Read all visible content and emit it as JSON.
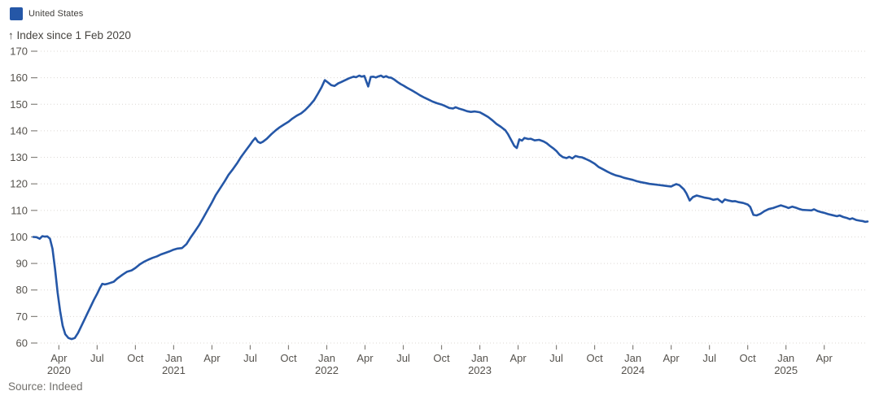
{
  "legend": {
    "label": "United States",
    "color": "#2557a7"
  },
  "source": {
    "text": "Source: Indeed"
  },
  "chart_data": {
    "type": "line",
    "title": "",
    "xlabel": "",
    "ylabel": "Index since 1 Feb 2020",
    "y_axis_label": "↑ Index since 1 Feb 2020",
    "ylim": [
      60,
      170
    ],
    "y_ticks": [
      60,
      70,
      80,
      90,
      100,
      110,
      120,
      130,
      140,
      150,
      160,
      170
    ],
    "grid": "dotted horizontal gridlines",
    "legend_position": "top-left",
    "x_unit": "months since 1 Feb 2020",
    "x_range_months": [
      0,
      65.4
    ],
    "x_ticks": [
      {
        "m": 2,
        "label": "Apr",
        "year": "2020"
      },
      {
        "m": 5,
        "label": "Jul"
      },
      {
        "m": 8,
        "label": "Oct"
      },
      {
        "m": 11,
        "label": "Jan",
        "year": "2021"
      },
      {
        "m": 14,
        "label": "Apr"
      },
      {
        "m": 17,
        "label": "Jul"
      },
      {
        "m": 20,
        "label": "Oct"
      },
      {
        "m": 23,
        "label": "Jan",
        "year": "2022"
      },
      {
        "m": 26,
        "label": "Apr"
      },
      {
        "m": 29,
        "label": "Jul"
      },
      {
        "m": 32,
        "label": "Oct"
      },
      {
        "m": 35,
        "label": "Jan",
        "year": "2023"
      },
      {
        "m": 38,
        "label": "Apr"
      },
      {
        "m": 41,
        "label": "Jul"
      },
      {
        "m": 44,
        "label": "Oct"
      },
      {
        "m": 47,
        "label": "Jan",
        "year": "2024"
      },
      {
        "m": 50,
        "label": "Apr"
      },
      {
        "m": 53,
        "label": "Jul"
      },
      {
        "m": 56,
        "label": "Oct"
      },
      {
        "m": 59,
        "label": "Jan",
        "year": "2025"
      },
      {
        "m": 62,
        "label": "Apr"
      }
    ],
    "series": [
      {
        "name": "United States",
        "color": "#2557a7",
        "points": [
          [
            0,
            100
          ],
          [
            0.25,
            99.9
          ],
          [
            0.5,
            99.3
          ],
          [
            0.7,
            100.3
          ],
          [
            0.9,
            100.1
          ],
          [
            1.1,
            100.2
          ],
          [
            1.3,
            99.3
          ],
          [
            1.5,
            95.5
          ],
          [
            1.7,
            88
          ],
          [
            1.9,
            79
          ],
          [
            2.1,
            72
          ],
          [
            2.3,
            66.5
          ],
          [
            2.5,
            63.3
          ],
          [
            2.75,
            61.9
          ],
          [
            3,
            61.5
          ],
          [
            3.25,
            61.9
          ],
          [
            3.5,
            63.8
          ],
          [
            3.75,
            66.3
          ],
          [
            4,
            68.8
          ],
          [
            4.25,
            71.3
          ],
          [
            4.5,
            73.8
          ],
          [
            4.75,
            76.3
          ],
          [
            5,
            78.6
          ],
          [
            5.2,
            80.6
          ],
          [
            5.4,
            82.3
          ],
          [
            5.6,
            82.1
          ],
          [
            5.8,
            82.3
          ],
          [
            6,
            82.6
          ],
          [
            6.3,
            83.1
          ],
          [
            6.6,
            84.4
          ],
          [
            7,
            85.8
          ],
          [
            7.35,
            86.9
          ],
          [
            7.7,
            87.4
          ],
          [
            8,
            88.3
          ],
          [
            8.35,
            89.7
          ],
          [
            8.7,
            90.7
          ],
          [
            9,
            91.4
          ],
          [
            9.35,
            92.1
          ],
          [
            9.7,
            92.7
          ],
          [
            10,
            93.4
          ],
          [
            10.3,
            93.9
          ],
          [
            10.65,
            94.5
          ],
          [
            11,
            95.2
          ],
          [
            11.3,
            95.6
          ],
          [
            11.65,
            95.8
          ],
          [
            12,
            97.3
          ],
          [
            12.3,
            99.6
          ],
          [
            12.65,
            102
          ],
          [
            13,
            104.5
          ],
          [
            13.3,
            107
          ],
          [
            13.65,
            110
          ],
          [
            14,
            113
          ],
          [
            14.3,
            115.8
          ],
          [
            14.65,
            118.4
          ],
          [
            15,
            121
          ],
          [
            15.3,
            123.4
          ],
          [
            15.65,
            125.6
          ],
          [
            16,
            128
          ],
          [
            16.3,
            130.3
          ],
          [
            16.65,
            132.6
          ],
          [
            17,
            134.8
          ],
          [
            17.2,
            136.2
          ],
          [
            17.4,
            137.3
          ],
          [
            17.6,
            135.9
          ],
          [
            17.8,
            135.4
          ],
          [
            18,
            135.9
          ],
          [
            18.3,
            137
          ],
          [
            18.65,
            138.7
          ],
          [
            19,
            140.2
          ],
          [
            19.3,
            141.3
          ],
          [
            19.65,
            142.4
          ],
          [
            20,
            143.4
          ],
          [
            20.3,
            144.6
          ],
          [
            20.65,
            145.7
          ],
          [
            21,
            146.6
          ],
          [
            21.3,
            147.8
          ],
          [
            21.65,
            149.5
          ],
          [
            22,
            151.5
          ],
          [
            22.3,
            153.9
          ],
          [
            22.6,
            156.5
          ],
          [
            22.85,
            159.1
          ],
          [
            23.1,
            158.2
          ],
          [
            23.35,
            157.2
          ],
          [
            23.6,
            156.9
          ],
          [
            23.9,
            157.9
          ],
          [
            24.1,
            158.3
          ],
          [
            24.4,
            159
          ],
          [
            24.75,
            159.8
          ],
          [
            25.1,
            160.4
          ],
          [
            25.3,
            160.2
          ],
          [
            25.55,
            160.8
          ],
          [
            25.75,
            160.4
          ],
          [
            25.95,
            160.7
          ],
          [
            26.1,
            158.6
          ],
          [
            26.25,
            156.7
          ],
          [
            26.45,
            160.3
          ],
          [
            26.65,
            160.4
          ],
          [
            26.85,
            160.1
          ],
          [
            27.05,
            160.5
          ],
          [
            27.25,
            160.8
          ],
          [
            27.45,
            160.2
          ],
          [
            27.65,
            160.6
          ],
          [
            27.85,
            160.1
          ],
          [
            28.05,
            160
          ],
          [
            28.3,
            159.3
          ],
          [
            28.55,
            158.4
          ],
          [
            28.8,
            157.6
          ],
          [
            29,
            157.1
          ],
          [
            29.3,
            156.2
          ],
          [
            29.65,
            155.3
          ],
          [
            30,
            154.3
          ],
          [
            30.3,
            153.4
          ],
          [
            30.65,
            152.5
          ],
          [
            31,
            151.7
          ],
          [
            31.3,
            151
          ],
          [
            31.65,
            150.4
          ],
          [
            32,
            149.9
          ],
          [
            32.3,
            149.3
          ],
          [
            32.6,
            148.6
          ],
          [
            32.9,
            148.4
          ],
          [
            33.1,
            148.9
          ],
          [
            33.4,
            148.3
          ],
          [
            33.7,
            147.9
          ],
          [
            34,
            147.4
          ],
          [
            34.3,
            147.1
          ],
          [
            34.6,
            147.3
          ],
          [
            35,
            147
          ],
          [
            35.3,
            146.2
          ],
          [
            35.65,
            145.2
          ],
          [
            36,
            143.9
          ],
          [
            36.3,
            142.6
          ],
          [
            36.65,
            141.5
          ],
          [
            37,
            140.2
          ],
          [
            37.2,
            138.8
          ],
          [
            37.45,
            136.6
          ],
          [
            37.7,
            134.3
          ],
          [
            37.9,
            133.5
          ],
          [
            38.1,
            136.8
          ],
          [
            38.3,
            136.3
          ],
          [
            38.5,
            137.3
          ],
          [
            38.8,
            136.9
          ],
          [
            39,
            137
          ],
          [
            39.3,
            136.4
          ],
          [
            39.65,
            136.6
          ],
          [
            40,
            136
          ],
          [
            40.25,
            135.3
          ],
          [
            40.5,
            134.3
          ],
          [
            40.75,
            133.4
          ],
          [
            41,
            132.4
          ],
          [
            41.25,
            131
          ],
          [
            41.5,
            130.1
          ],
          [
            41.8,
            129.7
          ],
          [
            42,
            130.2
          ],
          [
            42.25,
            129.6
          ],
          [
            42.5,
            130.5
          ],
          [
            42.8,
            130.1
          ],
          [
            43,
            130
          ],
          [
            43.3,
            129.4
          ],
          [
            43.65,
            128.6
          ],
          [
            44,
            127.6
          ],
          [
            44.3,
            126.4
          ],
          [
            44.65,
            125.5
          ],
          [
            45,
            124.6
          ],
          [
            45.3,
            123.9
          ],
          [
            45.65,
            123.2
          ],
          [
            46,
            122.8
          ],
          [
            46.3,
            122.3
          ],
          [
            46.65,
            121.9
          ],
          [
            47,
            121.5
          ],
          [
            47.3,
            121
          ],
          [
            47.65,
            120.6
          ],
          [
            48,
            120.3
          ],
          [
            48.3,
            120
          ],
          [
            48.65,
            119.8
          ],
          [
            49,
            119.6
          ],
          [
            49.3,
            119.4
          ],
          [
            49.65,
            119.2
          ],
          [
            50,
            119
          ],
          [
            50.2,
            119.5
          ],
          [
            50.4,
            119.9
          ],
          [
            50.65,
            119.5
          ],
          [
            51,
            117.9
          ],
          [
            51.2,
            116.4
          ],
          [
            51.45,
            113.7
          ],
          [
            51.7,
            115
          ],
          [
            52,
            115.6
          ],
          [
            52.3,
            115.2
          ],
          [
            52.65,
            114.8
          ],
          [
            53,
            114.5
          ],
          [
            53.3,
            114
          ],
          [
            53.65,
            114.3
          ],
          [
            54,
            113
          ],
          [
            54.2,
            114.1
          ],
          [
            54.5,
            113.7
          ],
          [
            54.8,
            113.4
          ],
          [
            55,
            113.5
          ],
          [
            55.3,
            113.1
          ],
          [
            55.65,
            112.8
          ],
          [
            56,
            112.2
          ],
          [
            56.2,
            111.3
          ],
          [
            56.45,
            108.3
          ],
          [
            56.7,
            108.1
          ],
          [
            57,
            108.7
          ],
          [
            57.3,
            109.7
          ],
          [
            57.65,
            110.5
          ],
          [
            58,
            110.9
          ],
          [
            58.3,
            111.4
          ],
          [
            58.6,
            111.9
          ],
          [
            59,
            111.3
          ],
          [
            59.2,
            110.9
          ],
          [
            59.5,
            111.4
          ],
          [
            59.8,
            111
          ],
          [
            60,
            110.6
          ],
          [
            60.3,
            110.2
          ],
          [
            60.65,
            110.1
          ],
          [
            61,
            110
          ],
          [
            61.2,
            110.4
          ],
          [
            61.5,
            109.7
          ],
          [
            61.8,
            109.3
          ],
          [
            62,
            109.1
          ],
          [
            62.3,
            108.6
          ],
          [
            62.65,
            108.2
          ],
          [
            63,
            107.8
          ],
          [
            63.2,
            108.1
          ],
          [
            63.5,
            107.5
          ],
          [
            63.8,
            107.1
          ],
          [
            64,
            106.7
          ],
          [
            64.2,
            107
          ],
          [
            64.5,
            106.4
          ],
          [
            64.8,
            106.1
          ],
          [
            65,
            106
          ],
          [
            65.2,
            105.7
          ],
          [
            65.4,
            105.8
          ]
        ]
      }
    ]
  }
}
